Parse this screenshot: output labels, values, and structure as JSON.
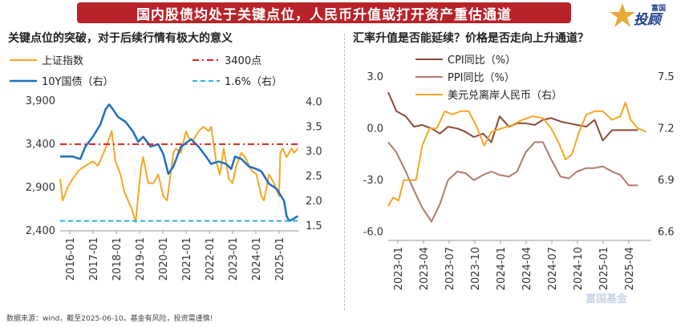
{
  "banner": {
    "title": "国内股债均处于关键点位，人民币升值或打开资产重估通道"
  },
  "logo": {
    "text": "投顾",
    "small": "富国"
  },
  "footer": {
    "note": "数据来源：wind，截至2025-06-10。基金有风险，投资需谨慎!"
  },
  "watermark": {
    "text": "富国基金"
  },
  "colors": {
    "banner": "#b8232a",
    "sse": "#f5a623",
    "bond": "#1f6fbf",
    "red_line": "#e02020",
    "cyan_line": "#2bb5e8",
    "cpi": "#8b4a3a",
    "ppi": "#b07a70",
    "usdcnh": "#f5a623"
  },
  "chart_data": [
    {
      "type": "line",
      "title": "关键点位的突破，对于后续行情有极大的意义",
      "x_ticks": [
        "2016-01",
        "2017-01",
        "2018-01",
        "2019-01",
        "2020-01",
        "2021-01",
        "2022-01",
        "2023-01",
        "2024-01",
        "2025-01"
      ],
      "y_left": {
        "lim": [
          2400,
          4000
        ],
        "ticks": [
          "2,400",
          "2,900",
          "3,400",
          "3,900"
        ],
        "tick_values": [
          2400,
          2900,
          3400,
          3900
        ]
      },
      "y_right": {
        "lim": [
          1.4,
          4.2
        ],
        "ticks": [
          "1.5",
          "2.0",
          "2.5",
          "3.0",
          "3.5",
          "4.0"
        ],
        "tick_values": [
          1.5,
          2.0,
          2.5,
          3.0,
          3.5,
          4.0
        ]
      },
      "legend": [
        "上证指数",
        "3400点",
        "10Y国债（右）",
        "1.6%（右）"
      ],
      "x_range": [
        2016.0,
        2025.5
      ],
      "series": [
        {
          "name": "上证指数",
          "axis": "left",
          "x": [
            2016.0,
            2016.1,
            2016.3,
            2016.5,
            2016.75,
            2017.0,
            2017.3,
            2017.5,
            2017.8,
            2018.05,
            2018.2,
            2018.4,
            2018.55,
            2018.7,
            2018.85,
            2019.0,
            2019.2,
            2019.3,
            2019.5,
            2019.7,
            2019.9,
            2020.1,
            2020.25,
            2020.5,
            2020.6,
            2020.8,
            2021.0,
            2021.15,
            2021.3,
            2021.5,
            2021.7,
            2021.9,
            2022.0,
            2022.2,
            2022.35,
            2022.5,
            2022.7,
            2022.85,
            2023.0,
            2023.2,
            2023.35,
            2023.6,
            2023.8,
            2024.0,
            2024.1,
            2024.3,
            2024.5,
            2024.7,
            2024.75,
            2024.85,
            2025.0,
            2025.2,
            2025.3,
            2025.45
          ],
          "values": [
            3000,
            2750,
            2900,
            3000,
            3100,
            3150,
            3200,
            3150,
            3350,
            3550,
            3200,
            3050,
            2850,
            2750,
            2650,
            2500,
            3100,
            3250,
            2950,
            2950,
            3050,
            2800,
            2750,
            3300,
            3350,
            3300,
            3550,
            3450,
            3450,
            3550,
            3600,
            3550,
            3600,
            3200,
            3050,
            3350,
            3000,
            2950,
            3150,
            3300,
            3250,
            3100,
            3050,
            2800,
            2750,
            3050,
            2950,
            2800,
            3300,
            3350,
            3250,
            3350,
            3300,
            3350
          ]
        },
        {
          "name": "10Y国债（右）",
          "axis": "right",
          "x": [
            2016.0,
            2016.2,
            2016.5,
            2016.8,
            2017.0,
            2017.3,
            2017.6,
            2017.8,
            2017.95,
            2018.1,
            2018.3,
            2018.6,
            2018.9,
            2019.1,
            2019.3,
            2019.6,
            2019.9,
            2020.1,
            2020.3,
            2020.5,
            2020.8,
            2020.95,
            2021.2,
            2021.5,
            2021.8,
            2022.0,
            2022.3,
            2022.6,
            2022.8,
            2022.95,
            2023.2,
            2023.5,
            2023.8,
            2024.0,
            2024.3,
            2024.6,
            2024.9,
            2025.0,
            2025.1,
            2025.3,
            2025.45
          ],
          "values": [
            2.9,
            2.9,
            2.9,
            2.85,
            3.1,
            3.3,
            3.55,
            3.85,
            3.95,
            3.85,
            3.7,
            3.6,
            3.4,
            3.2,
            3.3,
            3.1,
            3.15,
            2.95,
            2.55,
            2.7,
            3.1,
            3.15,
            3.25,
            3.1,
            2.9,
            2.75,
            2.8,
            2.75,
            2.65,
            2.9,
            2.85,
            2.7,
            2.65,
            2.6,
            2.35,
            2.25,
            2.0,
            1.7,
            1.6,
            1.65,
            1.7
          ]
        },
        {
          "name": "3400点",
          "axis": "left",
          "x": [
            2016.0,
            2025.5
          ],
          "values": [
            3400,
            3400
          ]
        },
        {
          "name": "1.6%（右）",
          "axis": "right",
          "x": [
            2016.0,
            2025.5
          ],
          "values": [
            1.6,
            1.6
          ]
        }
      ]
    },
    {
      "type": "line",
      "title": "汇率升值是否能延续？价格是否走向上升通道？",
      "x_ticks": [
        "2023-01",
        "2023-04",
        "2023-07",
        "2023-10",
        "2024-01",
        "2024-04",
        "2024-07",
        "2024-10",
        "2025-01",
        "2025-04"
      ],
      "y_left": {
        "lim": [
          -6.5,
          3.5
        ],
        "ticks": [
          "-6.0",
          "-3.0",
          "0.0",
          "3.0"
        ],
        "tick_values": [
          -6.0,
          -3.0,
          0.0,
          3.0
        ]
      },
      "y_right": {
        "lim": [
          6.55,
          7.55
        ],
        "ticks": [
          "6.6",
          "6.9",
          "7.2",
          "7.5"
        ],
        "tick_values": [
          6.6,
          6.9,
          7.2,
          7.5
        ]
      },
      "legend": [
        "CPI同比（%）",
        "PPI同比（%）",
        "美元兑离岸人民币（右）"
      ],
      "x_range": [
        2023.0,
        2025.55
      ],
      "series": [
        {
          "name": "CPI同比（%）",
          "axis": "left",
          "x": [
            2023.0,
            2023.08,
            2023.17,
            2023.25,
            2023.33,
            2023.42,
            2023.5,
            2023.58,
            2023.67,
            2023.75,
            2023.83,
            2023.92,
            2024.0,
            2024.08,
            2024.17,
            2024.25,
            2024.33,
            2024.42,
            2024.5,
            2024.58,
            2024.67,
            2024.75,
            2024.83,
            2024.92,
            2025.0,
            2025.08,
            2025.17,
            2025.25,
            2025.33,
            2025.42
          ],
          "values": [
            2.1,
            1.0,
            0.7,
            0.1,
            0.2,
            0.0,
            -0.3,
            0.1,
            0.0,
            -0.2,
            -0.5,
            -0.3,
            -0.8,
            0.7,
            0.1,
            0.3,
            0.3,
            0.2,
            0.5,
            0.6,
            0.4,
            0.3,
            0.2,
            0.1,
            0.5,
            -0.7,
            -0.1,
            -0.1,
            -0.1,
            -0.1
          ]
        },
        {
          "name": "PPI同比（%）",
          "axis": "left",
          "x": [
            2023.0,
            2023.08,
            2023.17,
            2023.25,
            2023.33,
            2023.42,
            2023.5,
            2023.58,
            2023.67,
            2023.75,
            2023.83,
            2023.92,
            2024.0,
            2024.08,
            2024.17,
            2024.25,
            2024.33,
            2024.42,
            2024.5,
            2024.58,
            2024.67,
            2024.75,
            2024.83,
            2024.92,
            2025.0,
            2025.08,
            2025.17,
            2025.25,
            2025.33,
            2025.42
          ],
          "values": [
            -0.8,
            -1.4,
            -2.5,
            -3.6,
            -4.6,
            -5.4,
            -4.4,
            -3.0,
            -2.5,
            -2.6,
            -3.0,
            -2.7,
            -2.5,
            -2.7,
            -2.8,
            -2.5,
            -1.4,
            -0.8,
            -0.8,
            -1.8,
            -2.8,
            -2.9,
            -2.5,
            -2.3,
            -2.3,
            -2.2,
            -2.5,
            -2.7,
            -3.3,
            -3.3
          ]
        },
        {
          "name": "美元兑离岸人民币（右）",
          "axis": "right",
          "x": [
            2023.0,
            2023.05,
            2023.1,
            2023.15,
            2023.2,
            2023.27,
            2023.33,
            2023.4,
            2023.47,
            2023.55,
            2023.62,
            2023.7,
            2023.78,
            2023.85,
            2023.93,
            2024.0,
            2024.1,
            2024.2,
            2024.3,
            2024.4,
            2024.5,
            2024.58,
            2024.65,
            2024.72,
            2024.78,
            2024.85,
            2024.92,
            2025.0,
            2025.08,
            2025.17,
            2025.25,
            2025.3,
            2025.35,
            2025.42,
            2025.5
          ],
          "values": [
            6.75,
            6.8,
            6.78,
            6.9,
            6.9,
            6.9,
            7.1,
            7.2,
            7.2,
            7.3,
            7.28,
            7.3,
            7.3,
            7.22,
            7.1,
            7.18,
            7.2,
            7.22,
            7.25,
            7.27,
            7.26,
            7.2,
            7.12,
            7.02,
            7.05,
            7.18,
            7.28,
            7.3,
            7.3,
            7.25,
            7.27,
            7.35,
            7.25,
            7.2,
            7.18
          ]
        }
      ]
    }
  ]
}
